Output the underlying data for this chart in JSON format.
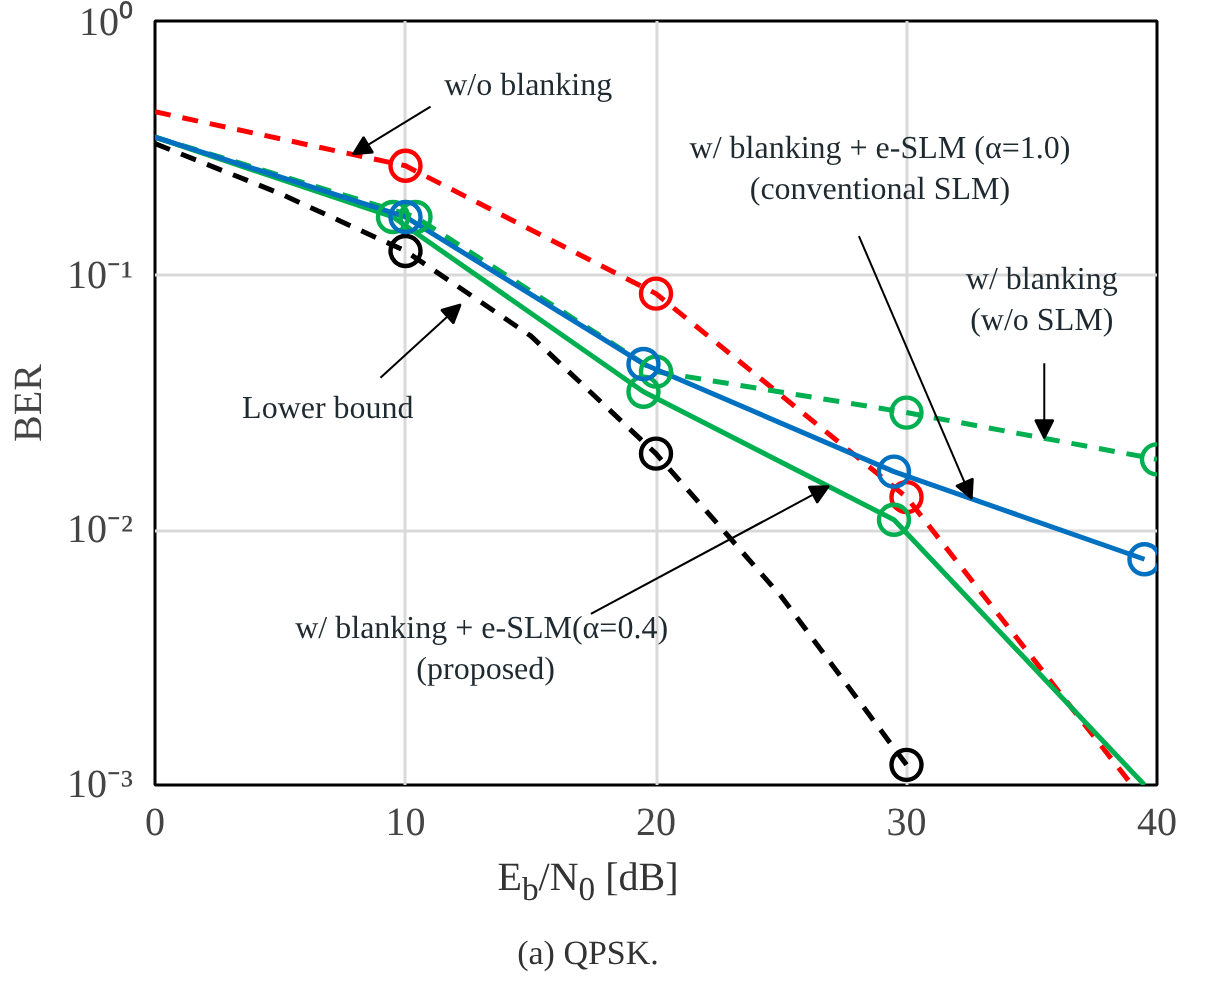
{
  "chart_data": {
    "type": "line",
    "title": "(a)  QPSK.",
    "xlabel": "E$_{b}$/N$_{0}$ [dB]",
    "ylabel": "BER",
    "log": "y",
    "grid": true,
    "xlim": [
      0,
      40
    ],
    "xticks": [
      0,
      10,
      20,
      30,
      40
    ],
    "ylim": [
      0.001,
      1
    ],
    "yticks": [
      {
        "value": 0.001,
        "label": "10⁻³"
      },
      {
        "value": 0.01,
        "label": "10⁻²"
      },
      {
        "value": 0.1,
        "label": "10⁻¹"
      },
      {
        "value": 1,
        "label": "10⁰"
      }
    ],
    "series": [
      {
        "color": "#ff0000",
        "line_style": "dashed",
        "x": [
          0,
          10,
          20,
          30,
          39
        ],
        "values": [
          0.44,
          0.27,
          0.085,
          0.0135,
          0.001
        ]
      },
      {
        "color": "#000000",
        "line_style": "dashed",
        "x": [
          0,
          5,
          10,
          15,
          20,
          25,
          30
        ],
        "values": [
          0.33,
          0.21,
          0.125,
          0.058,
          0.02,
          0.0055,
          0.0012
        ]
      },
      {
        "color": "#00b050",
        "line_style": "dashed",
        "x": [
          0,
          10.4,
          20,
          30,
          40
        ],
        "values": [
          0.35,
          0.17,
          0.042,
          0.029,
          0.019
        ]
      },
      {
        "color": "#00b050",
        "line_style": "solid",
        "x": [
          0,
          9.5,
          19.5,
          29.5,
          39.5
        ],
        "values": [
          0.35,
          0.17,
          0.035,
          0.011,
          0.001
        ]
      },
      {
        "color": "#0070c0",
        "line_style": "solid",
        "x": [
          0,
          10,
          19.5,
          29.5,
          39.5
        ],
        "values": [
          0.35,
          0.17,
          0.045,
          0.017,
          0.0077
        ]
      },
      {
        "type": "scatter",
        "marker": "circle",
        "color": "#ff0000",
        "x": [
          10,
          20,
          30
        ],
        "values": [
          0.27,
          0.085,
          0.0135
        ]
      },
      {
        "type": "scatter",
        "marker": "circle",
        "color": "#000000",
        "x": [
          10,
          20,
          30
        ],
        "values": [
          0.125,
          0.02,
          0.0012
        ]
      },
      {
        "type": "scatter",
        "marker": "circle",
        "color": "#00b050",
        "x": [
          10.4,
          20,
          30,
          40
        ],
        "values": [
          0.17,
          0.042,
          0.029,
          0.019
        ]
      },
      {
        "type": "scatter",
        "marker": "circle",
        "color": "#00b050",
        "x": [
          9.5,
          19.5,
          29.5
        ],
        "values": [
          0.17,
          0.035,
          0.011
        ]
      },
      {
        "type": "scatter",
        "marker": "circle",
        "color": "#0070c0",
        "x": [
          10,
          19.5,
          29.5,
          39.5
        ],
        "values": [
          0.17,
          0.045,
          0.017,
          0.0077
        ]
      }
    ],
    "annotations": [
      {
        "text": "w/o blanking",
        "x": 7.9,
        "y": 0.3
      },
      {
        "text": "w/ blanking  + e-SLM (α=1.0)\n(conventional  SLM)",
        "x": 32.6,
        "y": 0.0133
      },
      {
        "text": "w/ blanking\n(w/o SLM)",
        "x": 35.5,
        "y": 0.023
      },
      "Lower bound",
      {
        "text": "w/ blanking  + e-SLM(α=0.4)\n(proposed)",
        "x": 26.9,
        "y": 0.0149
      }
    ]
  }
}
